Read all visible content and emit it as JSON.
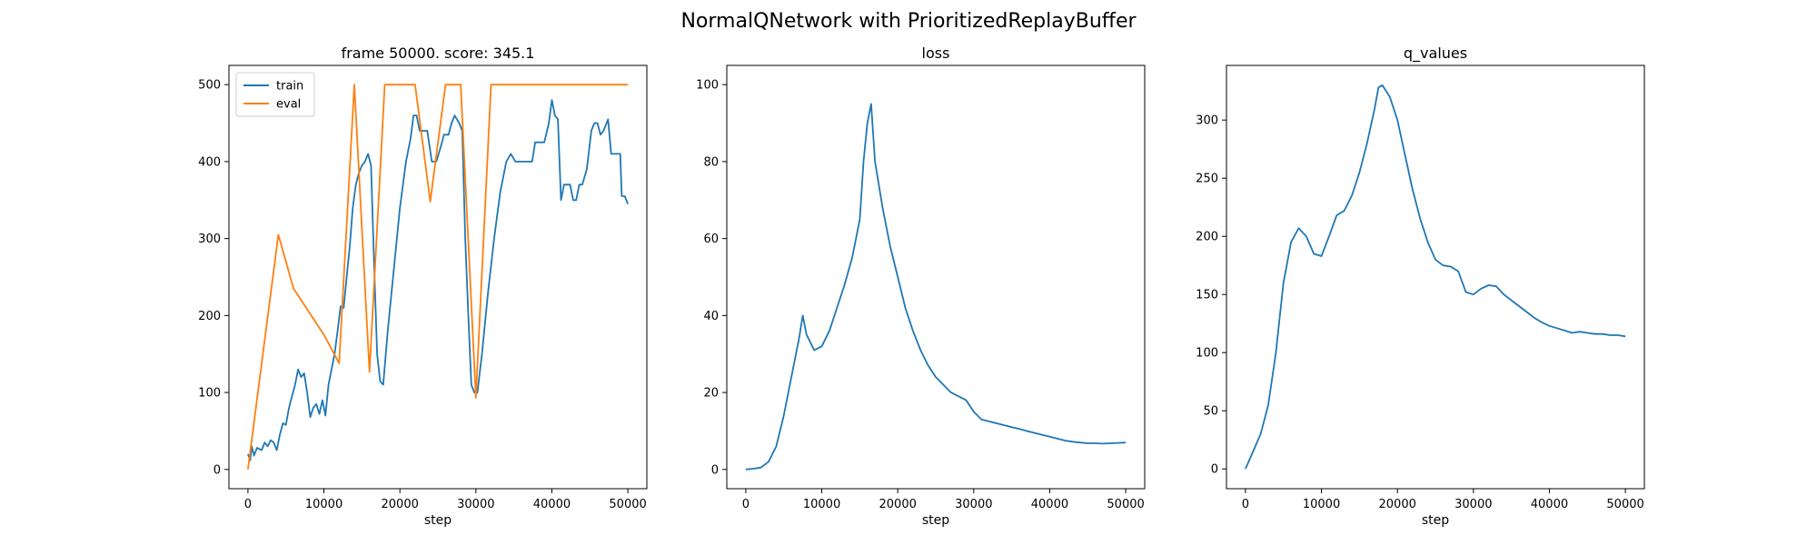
{
  "figure": {
    "suptitle": "NormalQNetwork with PrioritizedReplayBuffer",
    "colors": {
      "train": "#1f77b4",
      "eval": "#ff7f0e",
      "line": "#1f77b4"
    }
  },
  "chart_data": [
    {
      "type": "line",
      "title": "frame 50000. score: 345.1",
      "xlabel": "step",
      "ylabel": "",
      "xlim": [
        -2500,
        52500
      ],
      "ylim": [
        -25,
        525
      ],
      "xticks": [
        0,
        10000,
        20000,
        30000,
        40000,
        50000
      ],
      "yticks": [
        0,
        100,
        200,
        300,
        400,
        500
      ],
      "legend": "top-left",
      "series": [
        {
          "name": "train",
          "color": "#1f77b4",
          "points": [
            [
              0,
              20
            ],
            [
              300,
              12
            ],
            [
              500,
              30
            ],
            [
              800,
              18
            ],
            [
              1200,
              28
            ],
            [
              1800,
              25
            ],
            [
              2200,
              35
            ],
            [
              2600,
              30
            ],
            [
              3000,
              38
            ],
            [
              3400,
              35
            ],
            [
              3800,
              25
            ],
            [
              4200,
              45
            ],
            [
              4600,
              60
            ],
            [
              5000,
              58
            ],
            [
              5400,
              80
            ],
            [
              5800,
              95
            ],
            [
              6200,
              110
            ],
            [
              6600,
              130
            ],
            [
              7000,
              120
            ],
            [
              7400,
              125
            ],
            [
              7800,
              100
            ],
            [
              8200,
              68
            ],
            [
              8600,
              80
            ],
            [
              9000,
              85
            ],
            [
              9400,
              72
            ],
            [
              9800,
              90
            ],
            [
              10200,
              70
            ],
            [
              10600,
              110
            ],
            [
              11000,
              130
            ],
            [
              11400,
              150
            ],
            [
              11800,
              180
            ],
            [
              12200,
              212
            ],
            [
              12600,
              210
            ],
            [
              13000,
              250
            ],
            [
              13400,
              290
            ],
            [
              13800,
              340
            ],
            [
              14200,
              370
            ],
            [
              14600,
              385
            ],
            [
              15000,
              395
            ],
            [
              15400,
              400
            ],
            [
              15800,
              410
            ],
            [
              16200,
              395
            ],
            [
              16600,
              270
            ],
            [
              17000,
              150
            ],
            [
              17400,
              115
            ],
            [
              17800,
              110
            ],
            [
              18400,
              180
            ],
            [
              19200,
              260
            ],
            [
              20000,
              340
            ],
            [
              20800,
              400
            ],
            [
              21400,
              430
            ],
            [
              21800,
              460
            ],
            [
              22200,
              460
            ],
            [
              22600,
              440
            ],
            [
              23200,
              440
            ],
            [
              23600,
              440
            ],
            [
              24200,
              400
            ],
            [
              24800,
              400
            ],
            [
              25400,
              420
            ],
            [
              25800,
              435
            ],
            [
              26400,
              435
            ],
            [
              26800,
              450
            ],
            [
              27200,
              460
            ],
            [
              27800,
              450
            ],
            [
              28200,
              440
            ],
            [
              28600,
              300
            ],
            [
              29000,
              200
            ],
            [
              29400,
              110
            ],
            [
              29800,
              100
            ],
            [
              30200,
              100
            ],
            [
              30800,
              150
            ],
            [
              31600,
              230
            ],
            [
              32400,
              300
            ],
            [
              33200,
              360
            ],
            [
              34000,
              400
            ],
            [
              34600,
              410
            ],
            [
              35200,
              400
            ],
            [
              36000,
              400
            ],
            [
              36800,
              400
            ],
            [
              37400,
              400
            ],
            [
              37800,
              425
            ],
            [
              38400,
              425
            ],
            [
              39000,
              425
            ],
            [
              39600,
              450
            ],
            [
              40000,
              480
            ],
            [
              40400,
              460
            ],
            [
              40800,
              455
            ],
            [
              41200,
              350
            ],
            [
              41600,
              370
            ],
            [
              42400,
              370
            ],
            [
              42800,
              350
            ],
            [
              43200,
              350
            ],
            [
              43600,
              370
            ],
            [
              44000,
              370
            ],
            [
              44600,
              390
            ],
            [
              45200,
              440
            ],
            [
              45600,
              450
            ],
            [
              46000,
              450
            ],
            [
              46400,
              435
            ],
            [
              46800,
              440
            ],
            [
              47400,
              455
            ],
            [
              47800,
              410
            ],
            [
              48400,
              410
            ],
            [
              49000,
              410
            ],
            [
              49200,
              355
            ],
            [
              49600,
              355
            ],
            [
              50000,
              345
            ]
          ]
        },
        {
          "name": "eval",
          "color": "#ff7f0e",
          "points": [
            [
              0,
              0
            ],
            [
              4000,
              305
            ],
            [
              6000,
              235
            ],
            [
              8000,
              205
            ],
            [
              10000,
              175
            ],
            [
              12000,
              138
            ],
            [
              14000,
              500
            ],
            [
              16000,
              127
            ],
            [
              18000,
              500
            ],
            [
              22000,
              500
            ],
            [
              24000,
              348
            ],
            [
              26000,
              500
            ],
            [
              28000,
              500
            ],
            [
              30000,
              93
            ],
            [
              32000,
              500
            ],
            [
              34000,
              500
            ],
            [
              36000,
              500
            ],
            [
              38000,
              500
            ],
            [
              40000,
              500
            ],
            [
              42000,
              500
            ],
            [
              44000,
              500
            ],
            [
              46000,
              500
            ],
            [
              48000,
              500
            ],
            [
              50000,
              500
            ]
          ]
        }
      ]
    },
    {
      "type": "line",
      "title": "loss",
      "xlabel": "step",
      "ylabel": "",
      "xlim": [
        -2500,
        52500
      ],
      "ylim": [
        -5,
        105
      ],
      "xticks": [
        0,
        10000,
        20000,
        30000,
        40000,
        50000
      ],
      "yticks": [
        0,
        20,
        40,
        60,
        80,
        100
      ],
      "series": [
        {
          "color": "#1f77b4",
          "points": [
            [
              0,
              0
            ],
            [
              1000,
              0.2
            ],
            [
              2000,
              0.5
            ],
            [
              3000,
              2
            ],
            [
              4000,
              6
            ],
            [
              5000,
              14
            ],
            [
              6000,
              24
            ],
            [
              7000,
              34
            ],
            [
              7500,
              40
            ],
            [
              8000,
              35
            ],
            [
              9000,
              31
            ],
            [
              10000,
              32
            ],
            [
              11000,
              36
            ],
            [
              12000,
              42
            ],
            [
              13000,
              48
            ],
            [
              14000,
              55
            ],
            [
              15000,
              65
            ],
            [
              15500,
              80
            ],
            [
              16000,
              90
            ],
            [
              16500,
              95
            ],
            [
              17000,
              80
            ],
            [
              18000,
              68
            ],
            [
              19000,
              58
            ],
            [
              20000,
              50
            ],
            [
              21000,
              42
            ],
            [
              22000,
              36
            ],
            [
              23000,
              31
            ],
            [
              24000,
              27
            ],
            [
              25000,
              24
            ],
            [
              26000,
              22
            ],
            [
              27000,
              20
            ],
            [
              28000,
              19
            ],
            [
              29000,
              18
            ],
            [
              30000,
              15
            ],
            [
              31000,
              13
            ],
            [
              32000,
              12.5
            ],
            [
              33000,
              12
            ],
            [
              34000,
              11.5
            ],
            [
              35000,
              11
            ],
            [
              36000,
              10.5
            ],
            [
              37000,
              10
            ],
            [
              38000,
              9.5
            ],
            [
              39000,
              9
            ],
            [
              40000,
              8.5
            ],
            [
              41000,
              8
            ],
            [
              42000,
              7.5
            ],
            [
              43000,
              7.2
            ],
            [
              44000,
              7
            ],
            [
              45000,
              6.8
            ],
            [
              46000,
              6.8
            ],
            [
              47000,
              6.7
            ],
            [
              48000,
              6.8
            ],
            [
              49000,
              6.9
            ],
            [
              50000,
              7
            ]
          ]
        }
      ]
    },
    {
      "type": "line",
      "title": "q_values",
      "xlabel": "step",
      "ylabel": "",
      "xlim": [
        -2500,
        52500
      ],
      "ylim": [
        -17,
        347
      ],
      "xticks": [
        0,
        10000,
        20000,
        30000,
        40000,
        50000
      ],
      "yticks": [
        0,
        50,
        100,
        150,
        200,
        250,
        300
      ],
      "series": [
        {
          "color": "#1f77b4",
          "points": [
            [
              0,
              0
            ],
            [
              1000,
              15
            ],
            [
              2000,
              30
            ],
            [
              3000,
              55
            ],
            [
              4000,
              100
            ],
            [
              5000,
              160
            ],
            [
              6000,
              195
            ],
            [
              7000,
              207
            ],
            [
              8000,
              200
            ],
            [
              9000,
              185
            ],
            [
              10000,
              183
            ],
            [
              11000,
              200
            ],
            [
              12000,
              218
            ],
            [
              13000,
              222
            ],
            [
              14000,
              235
            ],
            [
              15000,
              255
            ],
            [
              16000,
              280
            ],
            [
              17000,
              310
            ],
            [
              17500,
              328
            ],
            [
              18000,
              330
            ],
            [
              19000,
              320
            ],
            [
              20000,
              300
            ],
            [
              21000,
              270
            ],
            [
              22000,
              240
            ],
            [
              23000,
              215
            ],
            [
              24000,
              195
            ],
            [
              25000,
              180
            ],
            [
              26000,
              175
            ],
            [
              27000,
              174
            ],
            [
              28000,
              170
            ],
            [
              29000,
              152
            ],
            [
              30000,
              150
            ],
            [
              31000,
              155
            ],
            [
              32000,
              158
            ],
            [
              33000,
              157
            ],
            [
              34000,
              150
            ],
            [
              35000,
              145
            ],
            [
              36000,
              140
            ],
            [
              37000,
              135
            ],
            [
              38000,
              130
            ],
            [
              39000,
              126
            ],
            [
              40000,
              123
            ],
            [
              41000,
              121
            ],
            [
              42000,
              119
            ],
            [
              43000,
              117
            ],
            [
              44000,
              118
            ],
            [
              45000,
              117
            ],
            [
              46000,
              116
            ],
            [
              47000,
              116
            ],
            [
              48000,
              115
            ],
            [
              49000,
              115
            ],
            [
              50000,
              114
            ]
          ]
        }
      ]
    }
  ]
}
